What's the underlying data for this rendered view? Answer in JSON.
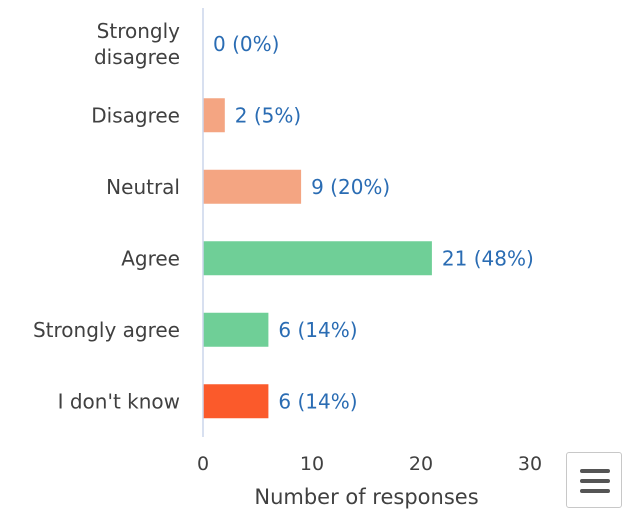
{
  "chart_data": {
    "type": "bar",
    "orientation": "horizontal",
    "categories": [
      [
        "Strongly",
        "disagree"
      ],
      [
        "Disagree"
      ],
      [
        "Neutral"
      ],
      [
        "Agree"
      ],
      [
        "Strongly agree"
      ],
      [
        "I don't know"
      ]
    ],
    "values": [
      0,
      2,
      9,
      21,
      6,
      6
    ],
    "data_labels": [
      "0 (0%)",
      "2 (5%)",
      "9 (20%)",
      "21 (48%)",
      "6 (14%)",
      "6 (14%)"
    ],
    "bar_colors": [
      "#f4a582",
      "#f4a582",
      "#f4a582",
      "#6fcf97",
      "#6fcf97",
      "#fb5a2b"
    ],
    "xlabel": "Number of responses",
    "xlim": [
      0,
      30
    ],
    "x_ticks": [
      "0",
      "10",
      "20",
      "30"
    ],
    "grid": false,
    "label_color": "#2a6cb3",
    "text_color": "#404040",
    "axis_color": "#ccd6eb"
  },
  "menu": {
    "icon": "hamburger-menu-icon"
  }
}
